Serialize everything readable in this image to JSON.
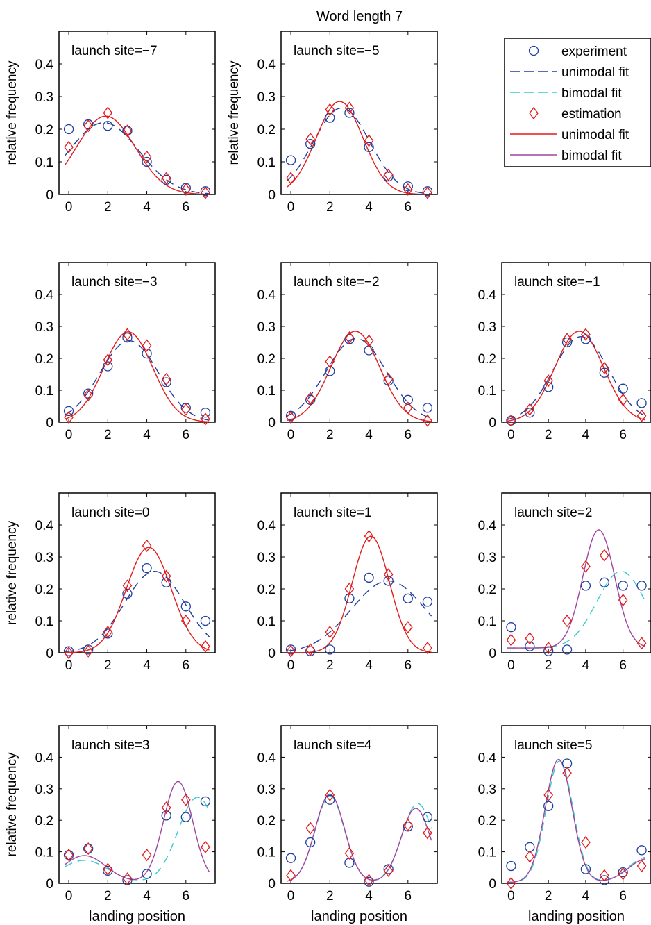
{
  "figure_title": "Word length 7",
  "legend": {
    "entries": [
      {
        "label": "experiment",
        "kind": "circle",
        "color": "#1f3f9f"
      },
      {
        "label": "unimodal fit",
        "kind": "dashline",
        "color": "#1f3f9f"
      },
      {
        "label": "bimodal fit",
        "kind": "dashline",
        "color": "#33cccc"
      },
      {
        "label": "estimation",
        "kind": "diamond",
        "color": "#e21a1a"
      },
      {
        "label": "unimodal fit",
        "kind": "line",
        "color": "#e21a1a"
      },
      {
        "label": "bimodal fit",
        "kind": "line",
        "color": "#a0449e"
      }
    ]
  },
  "colors": {
    "experiment": "#1f3f9f",
    "estimation": "#e21a1a",
    "bimodal_exp": "#33cccc",
    "bimodal_est": "#a0449e"
  },
  "chart_data": [
    {
      "type": "scatter",
      "title": "launch site=−7",
      "ylabel": "relative frequency",
      "xlabel": "",
      "xlim": [
        -0.5,
        7.5
      ],
      "ylim": [
        0,
        0.5
      ],
      "xticks": [
        0,
        2,
        4,
        6
      ],
      "yticks": [
        0,
        0.1,
        0.2,
        0.3,
        0.4
      ],
      "x": [
        0,
        1,
        2,
        3,
        4,
        5,
        6,
        7
      ],
      "experiment": [
        0.2,
        0.215,
        0.21,
        0.195,
        0.1,
        0.045,
        0.02,
        0.01
      ],
      "estimation": [
        0.145,
        0.21,
        0.25,
        0.195,
        0.115,
        0.05,
        0.015,
        0.005
      ],
      "fit": "unimodal",
      "exp_fit": {
        "amp": 0.22,
        "mu": 1.8,
        "sigma": 1.8,
        "base": 0.0
      },
      "est_fit": {
        "amp": 0.24,
        "mu": 1.9,
        "sigma": 1.5,
        "base": 0.0
      }
    },
    {
      "type": "scatter",
      "title": "launch site=−5",
      "ylabel": "relative frequency",
      "xlabel": "",
      "xlim": [
        -0.5,
        7.5
      ],
      "ylim": [
        0,
        0.5
      ],
      "xticks": [
        0,
        2,
        4,
        6
      ],
      "yticks": [
        0,
        0.1,
        0.2,
        0.3,
        0.4
      ],
      "x": [
        0,
        1,
        2,
        3,
        4,
        5,
        6,
        7
      ],
      "experiment": [
        0.105,
        0.155,
        0.235,
        0.25,
        0.145,
        0.055,
        0.025,
        0.01
      ],
      "estimation": [
        0.05,
        0.17,
        0.26,
        0.265,
        0.165,
        0.06,
        0.015,
        0.005
      ],
      "fit": "unimodal",
      "exp_fit": {
        "amp": 0.265,
        "mu": 2.6,
        "sigma": 1.45,
        "base": 0.0
      },
      "est_fit": {
        "amp": 0.285,
        "mu": 2.5,
        "sigma": 1.2,
        "base": 0.0
      }
    },
    {
      "type": "scatter",
      "title": "launch site=−3",
      "ylabel": "",
      "xlabel": "",
      "xlim": [
        -0.5,
        7.5
      ],
      "ylim": [
        0,
        0.5
      ],
      "xticks": [
        0,
        2,
        4,
        6
      ],
      "yticks": [
        0,
        0.1,
        0.2,
        0.3,
        0.4
      ],
      "x": [
        0,
        1,
        2,
        3,
        4,
        5,
        6,
        7
      ],
      "experiment": [
        0.035,
        0.09,
        0.175,
        0.265,
        0.215,
        0.125,
        0.045,
        0.03
      ],
      "estimation": [
        0.015,
        0.085,
        0.195,
        0.275,
        0.24,
        0.135,
        0.04,
        0.01
      ],
      "fit": "unimodal",
      "exp_fit": {
        "amp": 0.255,
        "mu": 3.1,
        "sigma": 1.5,
        "base": 0.0
      },
      "est_fit": {
        "amp": 0.283,
        "mu": 3.05,
        "sigma": 1.25,
        "base": 0.0
      }
    },
    {
      "type": "scatter",
      "title": "launch site=−2",
      "ylabel": "",
      "xlabel": "",
      "xlim": [
        -0.5,
        7.5
      ],
      "ylim": [
        0,
        0.5
      ],
      "xticks": [
        0,
        2,
        4,
        6
      ],
      "yticks": [
        0,
        0.1,
        0.2,
        0.3,
        0.4
      ],
      "x": [
        0,
        1,
        2,
        3,
        4,
        5,
        6,
        7
      ],
      "experiment": [
        0.02,
        0.07,
        0.16,
        0.26,
        0.225,
        0.13,
        0.07,
        0.045
      ],
      "estimation": [
        0.015,
        0.075,
        0.19,
        0.265,
        0.255,
        0.135,
        0.045,
        0.005
      ],
      "fit": "unimodal",
      "exp_fit": {
        "amp": 0.262,
        "mu": 3.35,
        "sigma": 1.55,
        "base": 0.0
      },
      "est_fit": {
        "amp": 0.285,
        "mu": 3.3,
        "sigma": 1.25,
        "base": 0.0
      }
    },
    {
      "type": "scatter",
      "title": "launch site=−1",
      "ylabel": "",
      "xlabel": "",
      "xlim": [
        -0.5,
        7.5
      ],
      "ylim": [
        0,
        0.5
      ],
      "xticks": [
        0,
        2,
        4,
        6
      ],
      "yticks": [
        0,
        0.1,
        0.2,
        0.3,
        0.4
      ],
      "x": [
        0,
        1,
        2,
        3,
        4,
        5,
        6,
        7
      ],
      "experiment": [
        0.005,
        0.03,
        0.11,
        0.25,
        0.26,
        0.155,
        0.105,
        0.06
      ],
      "estimation": [
        0.005,
        0.04,
        0.13,
        0.26,
        0.275,
        0.17,
        0.07,
        0.02
      ],
      "fit": "unimodal",
      "exp_fit": {
        "amp": 0.268,
        "mu": 3.75,
        "sigma": 1.5,
        "base": 0.0
      },
      "est_fit": {
        "amp": 0.285,
        "mu": 3.65,
        "sigma": 1.3,
        "base": 0.0
      }
    },
    {
      "type": "scatter",
      "title": "launch site=0",
      "ylabel": "relative frequency",
      "xlabel": "",
      "xlim": [
        -0.5,
        7.5
      ],
      "ylim": [
        0,
        0.5
      ],
      "xticks": [
        0,
        2,
        4,
        6
      ],
      "yticks": [
        0,
        0.1,
        0.2,
        0.3,
        0.4
      ],
      "x": [
        0,
        1,
        2,
        3,
        4,
        5,
        6,
        7
      ],
      "experiment": [
        0.005,
        0.01,
        0.06,
        0.185,
        0.265,
        0.22,
        0.145,
        0.1
      ],
      "estimation": [
        0.0,
        0.005,
        0.065,
        0.21,
        0.335,
        0.24,
        0.1,
        0.02
      ],
      "fit": "unimodal",
      "exp_fit": {
        "amp": 0.255,
        "mu": 4.4,
        "sigma": 1.55,
        "base": 0.0
      },
      "est_fit": {
        "amp": 0.33,
        "mu": 4.1,
        "sigma": 1.15,
        "base": 0.0
      }
    },
    {
      "type": "scatter",
      "title": "launch site=1",
      "ylabel": "",
      "xlabel": "",
      "xlim": [
        -0.5,
        7.5
      ],
      "ylim": [
        0,
        0.5
      ],
      "xticks": [
        0,
        2,
        4,
        6
      ],
      "yticks": [
        0,
        0.1,
        0.2,
        0.3,
        0.4
      ],
      "x": [
        0,
        1,
        2,
        3,
        4,
        5,
        6,
        7
      ],
      "experiment": [
        0.01,
        0.005,
        0.01,
        0.17,
        0.235,
        0.225,
        0.17,
        0.16
      ],
      "estimation": [
        0.005,
        0.01,
        0.065,
        0.2,
        0.365,
        0.245,
        0.08,
        0.015
      ],
      "fit": "unimodal",
      "exp_fit": {
        "amp": 0.225,
        "mu": 5.0,
        "sigma": 1.9,
        "base": 0.0
      },
      "est_fit": {
        "amp": 0.365,
        "mu": 4.1,
        "sigma": 0.95,
        "base": 0.0
      }
    },
    {
      "type": "scatter",
      "title": "launch site=2",
      "ylabel": "",
      "xlabel": "",
      "xlim": [
        -0.5,
        7.5
      ],
      "ylim": [
        0,
        0.5
      ],
      "xticks": [
        0,
        2,
        4,
        6
      ],
      "yticks": [
        0,
        0.1,
        0.2,
        0.3,
        0.4
      ],
      "x": [
        0,
        1,
        2,
        3,
        4,
        5,
        6,
        7
      ],
      "experiment": [
        0.08,
        0.02,
        0.005,
        0.01,
        0.21,
        0.22,
        0.21,
        0.21
      ],
      "estimation": [
        0.04,
        0.045,
        0.015,
        0.1,
        0.27,
        0.305,
        0.165,
        0.03
      ],
      "fit": "bimodal",
      "exp_fit": {
        "amp": 0.24,
        "mu": 5.9,
        "sigma": 1.3,
        "base": 0.015
      },
      "est_fit": {
        "amp": 0.37,
        "mu": 4.7,
        "sigma": 0.85,
        "base": 0.015
      }
    },
    {
      "type": "scatter",
      "title": "launch site=3",
      "ylabel": "relative frequency",
      "xlabel": "landing position",
      "xlim": [
        -0.5,
        7.5
      ],
      "ylim": [
        0,
        0.5
      ],
      "xticks": [
        0,
        2,
        4,
        6
      ],
      "yticks": [
        0,
        0.1,
        0.2,
        0.3,
        0.4
      ],
      "x": [
        0,
        1,
        2,
        3,
        4,
        5,
        6,
        7
      ],
      "experiment": [
        0.09,
        0.11,
        0.04,
        0.01,
        0.03,
        0.215,
        0.21,
        0.26
      ],
      "estimation": [
        0.09,
        0.11,
        0.045,
        0.015,
        0.09,
        0.24,
        0.265,
        0.115
      ],
      "fit": "bimodal",
      "exp_fit2": [
        {
          "amp": 0.07,
          "mu": 0.8,
          "sigma": 1.2
        },
        {
          "amp": 0.27,
          "mu": 6.6,
          "sigma": 1.0
        }
      ],
      "est_fit2": [
        {
          "amp": 0.085,
          "mu": 0.8,
          "sigma": 1.1
        },
        {
          "amp": 0.32,
          "mu": 5.6,
          "sigma": 0.75
        }
      ]
    },
    {
      "type": "scatter",
      "title": "launch site=4",
      "ylabel": "",
      "xlabel": "landing position",
      "xlim": [
        -0.5,
        7.5
      ],
      "ylim": [
        0,
        0.5
      ],
      "xticks": [
        0,
        2,
        4,
        6
      ],
      "yticks": [
        0,
        0.1,
        0.2,
        0.3,
        0.4
      ],
      "x": [
        0,
        1,
        2,
        3,
        4,
        5,
        6,
        7
      ],
      "experiment": [
        0.08,
        0.13,
        0.265,
        0.065,
        0.005,
        0.045,
        0.18,
        0.21
      ],
      "estimation": [
        0.025,
        0.175,
        0.28,
        0.095,
        0.01,
        0.04,
        0.185,
        0.16
      ],
      "fit": "bimodal",
      "exp_fit2": [
        {
          "amp": 0.275,
          "mu": 2.0,
          "sigma": 0.75
        },
        {
          "amp": 0.25,
          "mu": 6.5,
          "sigma": 0.8
        }
      ],
      "est_fit2": [
        {
          "amp": 0.28,
          "mu": 2.0,
          "sigma": 0.75
        },
        {
          "amp": 0.235,
          "mu": 6.4,
          "sigma": 0.75
        }
      ]
    },
    {
      "type": "scatter",
      "title": "launch site=5",
      "ylabel": "",
      "xlabel": "landing position",
      "xlim": [
        -0.5,
        7.5
      ],
      "ylim": [
        0,
        0.5
      ],
      "xticks": [
        0,
        2,
        4,
        6
      ],
      "yticks": [
        0,
        0.1,
        0.2,
        0.3,
        0.4
      ],
      "x": [
        0,
        1,
        2,
        3,
        4,
        5,
        6,
        7
      ],
      "experiment": [
        0.055,
        0.115,
        0.245,
        0.38,
        0.045,
        0.01,
        0.035,
        0.105
      ],
      "estimation": [
        0.0,
        0.085,
        0.28,
        0.35,
        0.13,
        0.025,
        0.03,
        0.055
      ],
      "fit": "bimodal",
      "exp_fit2": [
        {
          "amp": 0.385,
          "mu": 2.6,
          "sigma": 0.72
        },
        {
          "amp": 0.08,
          "mu": 7.3,
          "sigma": 1.0
        }
      ],
      "est_fit2": [
        {
          "amp": 0.39,
          "mu": 2.55,
          "sigma": 0.72
        },
        {
          "amp": 0.075,
          "mu": 7.3,
          "sigma": 1.0
        }
      ]
    }
  ]
}
